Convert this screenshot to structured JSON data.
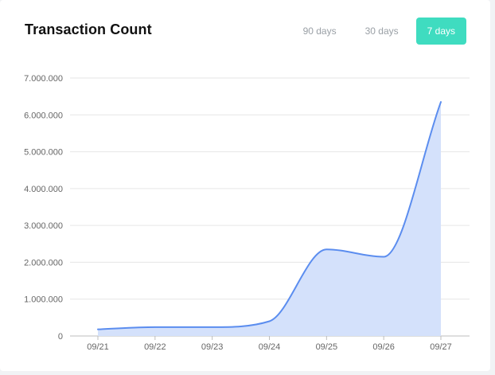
{
  "header": {
    "title": "Transaction Count"
  },
  "range_tabs": [
    {
      "label": "90 days",
      "active": false
    },
    {
      "label": "30 days",
      "active": false
    },
    {
      "label": "7 days",
      "active": true
    }
  ],
  "colors": {
    "accent": "#3fdcc0",
    "line": "#5b8def",
    "area": "#d4e1fb"
  },
  "chart_data": {
    "type": "area",
    "title": "Transaction Count",
    "xlabel": "",
    "ylabel": "",
    "categories": [
      "09/21",
      "09/22",
      "09/23",
      "09/24",
      "09/25",
      "09/26",
      "09/27"
    ],
    "series": [
      {
        "values": [
          180000,
          240000,
          240000,
          400000,
          2350000,
          2150000,
          6350000
        ]
      }
    ],
    "ylim": [
      0,
      7000000
    ],
    "yticks": [
      0,
      1000000,
      2000000,
      3000000,
      4000000,
      5000000,
      6000000,
      7000000
    ],
    "ytick_labels": [
      "0",
      "1.000.000",
      "2.000.000",
      "3.000.000",
      "4.000.000",
      "5.000.000",
      "6.000.000",
      "7.000.000"
    ],
    "grid": true,
    "legend": "none"
  }
}
